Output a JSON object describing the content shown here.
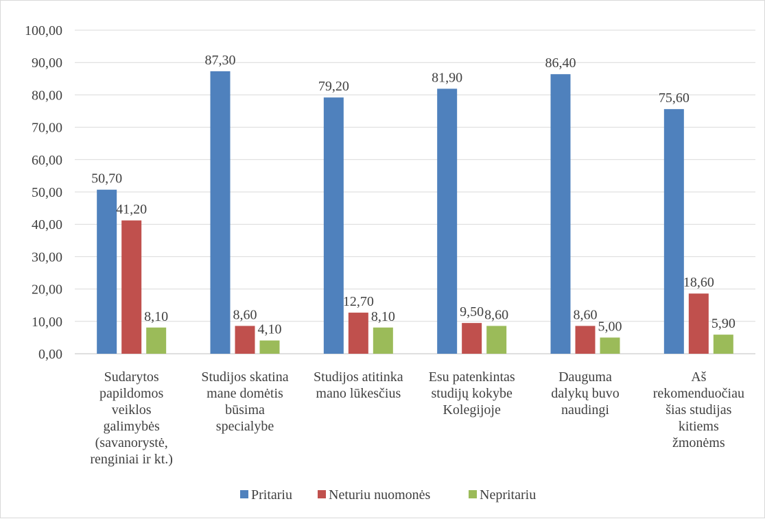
{
  "chart_data": {
    "type": "bar",
    "categories": [
      [
        "Sudarytos",
        "papildomos",
        "veiklos",
        "galimybės",
        "(savanorystė,",
        "renginiai ir kt.)"
      ],
      [
        "Studijos skatina",
        "mane domėtis",
        "būsima",
        "specialybe"
      ],
      [
        "Studijos atitinka",
        "mano lūkesčius"
      ],
      [
        "Esu patenkintas",
        "studijų kokybe",
        "Kolegijoje"
      ],
      [
        "Dauguma",
        "dalykų buvo",
        "naudingi"
      ],
      [
        "Aš",
        "rekomenduočiau",
        "šias studijas",
        "kitiems",
        "žmonėms"
      ]
    ],
    "series": [
      {
        "name": "Pritariu",
        "color": "#4f81bd",
        "values": [
          50.7,
          87.3,
          79.2,
          81.9,
          86.4,
          75.6
        ],
        "labels": [
          "50,70",
          "87,30",
          "79,20",
          "81,90",
          "86,40",
          "75,60"
        ]
      },
      {
        "name": "Neturiu nuomonės",
        "color": "#c0504d",
        "values": [
          41.2,
          8.6,
          12.7,
          9.5,
          8.6,
          18.6
        ],
        "labels": [
          "41,20",
          "8,60",
          "12,70",
          "9,50",
          "8,60",
          "18,60"
        ]
      },
      {
        "name": "Nepritariu",
        "color": "#9bbb59",
        "values": [
          8.1,
          4.1,
          8.1,
          8.6,
          5.0,
          5.9
        ],
        "labels": [
          "8,10",
          "4,10",
          "8,10",
          "8,60",
          "5,00",
          "5,90"
        ]
      }
    ],
    "y_ticks": [
      "0,00",
      "10,00",
      "20,00",
      "30,00",
      "40,00",
      "50,00",
      "60,00",
      "70,00",
      "80,00",
      "90,00",
      "100,00"
    ],
    "ylim": [
      0,
      100
    ],
    "grid": true,
    "legend_position": "bottom"
  }
}
